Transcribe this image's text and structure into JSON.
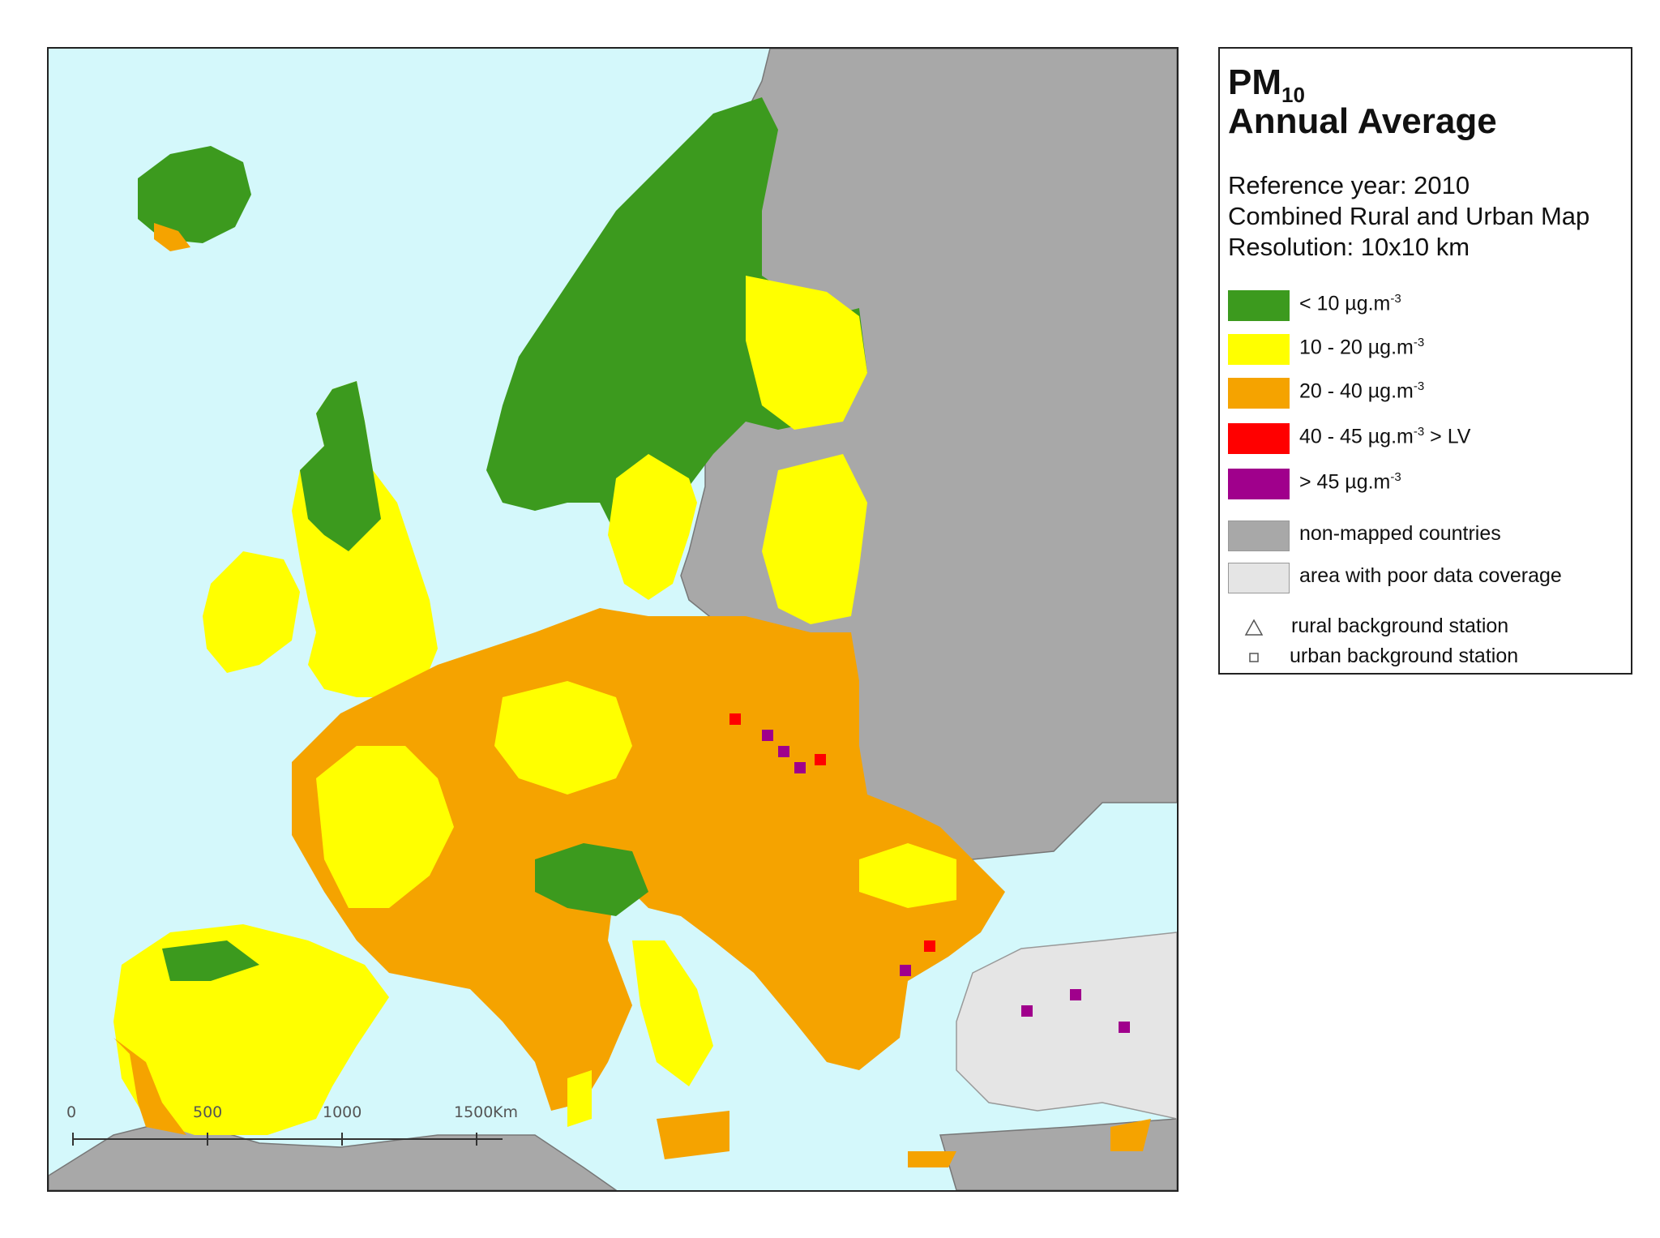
{
  "legend": {
    "pollutant": "PM",
    "pollutant_subscript": "10",
    "title_line2": "Annual Average",
    "reference_year": "Reference year: 2010",
    "map_type": "Combined Rural and Urban Map",
    "resolution": "Resolution: 10x10 km",
    "classes": [
      {
        "label": "<  10  µg.m",
        "sup": "-3",
        "suffix": "",
        "color": "#3c9a1e"
      },
      {
        "label": "10 - 20  µg.m",
        "sup": "-3",
        "suffix": "",
        "color": "#ffff00"
      },
      {
        "label": "20 - 40  µg.m",
        "sup": "-3",
        "suffix": "",
        "color": "#f5a300"
      },
      {
        "label": "40 - 45  µg.m",
        "sup": "-3",
        "suffix": " > LV",
        "color": "#ff0000"
      },
      {
        "label": ">  45  µg.m",
        "sup": "-3",
        "suffix": "",
        "color": "#a0008c"
      }
    ],
    "non_mapped": {
      "label": "non-mapped countries",
      "color": "#a8a8a8"
    },
    "poor_coverage": {
      "label": "area with poor data coverage",
      "color": "#e5e5e5"
    },
    "rural_station": "rural background station",
    "urban_station": "urban background station"
  },
  "map": {
    "sea_color": "#d4f8fb",
    "scale_bar": {
      "ticks": [
        "0",
        "500",
        "1000",
        "1500"
      ],
      "unit": "Km"
    }
  }
}
